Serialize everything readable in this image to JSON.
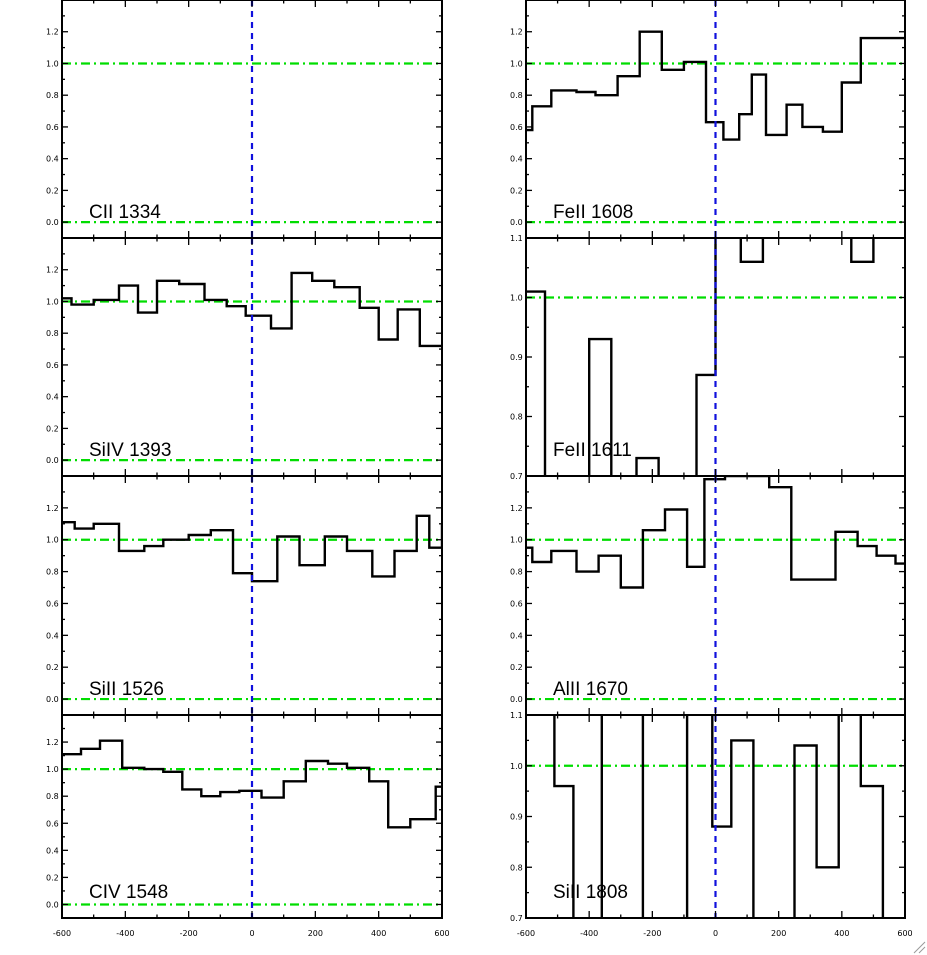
{
  "figure": {
    "x_ticks": [
      -600,
      -400,
      -200,
      0,
      200,
      400,
      600
    ],
    "colors": {
      "spectrum": "#000000",
      "continuum": "#00dd00",
      "systemic": "#1010dd"
    }
  },
  "chart_data": [
    {
      "type": "line",
      "step": true,
      "label": "CII 1334",
      "xlim": [
        -600,
        600
      ],
      "ylim": [
        -0.1,
        1.4
      ],
      "yticks": [
        0.0,
        0.2,
        0.4,
        0.6,
        0.8,
        1.0,
        1.2
      ],
      "ytick_labels": [
        "0.0",
        "0.2",
        "0.4",
        "0.6",
        "0.8",
        "1.0",
        "1.2"
      ],
      "continuum": 1.0,
      "zero_level": 0.0,
      "systemic_velocity": 0,
      "x": [],
      "y": []
    },
    {
      "type": "line",
      "step": true,
      "label": "FeII 1608",
      "xlim": [
        -600,
        600
      ],
      "ylim": [
        -0.1,
        1.4
      ],
      "yticks": [
        0.0,
        0.2,
        0.4,
        0.6,
        0.8,
        1.0,
        1.2
      ],
      "ytick_labels": [
        "0.0",
        "0.2",
        "0.4",
        "0.6",
        "0.8",
        "1.0",
        "1.2"
      ],
      "continuum": 1.0,
      "zero_level": 0.0,
      "systemic_velocity": 0,
      "x": [
        -600,
        -580,
        -520,
        -440,
        -380,
        -310,
        -240,
        -170,
        -100,
        -30,
        25,
        75,
        115,
        160,
        225,
        275,
        340,
        400,
        460,
        520,
        560,
        600
      ],
      "y": [
        0.58,
        0.73,
        0.83,
        0.82,
        0.8,
        0.92,
        1.2,
        0.96,
        1.01,
        0.63,
        0.52,
        0.68,
        0.93,
        0.55,
        0.74,
        0.6,
        0.57,
        0.88,
        1.16,
        1.16,
        1.16,
        1.16
      ]
    },
    {
      "type": "line",
      "step": true,
      "label": "SiIV 1393",
      "xlim": [
        -600,
        600
      ],
      "ylim": [
        -0.1,
        1.4
      ],
      "yticks": [
        0.0,
        0.2,
        0.4,
        0.6,
        0.8,
        1.0,
        1.2
      ],
      "ytick_labels": [
        "0.0",
        "0.2",
        "0.4",
        "0.6",
        "0.8",
        "1.0",
        "1.2"
      ],
      "continuum": 1.0,
      "zero_level": 0.0,
      "systemic_velocity": 0,
      "x": [
        -600,
        -570,
        -500,
        -420,
        -360,
        -300,
        -230,
        -150,
        -80,
        -20,
        60,
        125,
        190,
        260,
        340,
        400,
        460,
        530,
        570,
        600
      ],
      "y": [
        1.02,
        0.98,
        1.01,
        1.1,
        0.93,
        1.13,
        1.11,
        1.01,
        0.97,
        0.91,
        0.83,
        1.18,
        1.13,
        1.09,
        0.96,
        0.76,
        0.95,
        0.72,
        0.72,
        0.72
      ]
    },
    {
      "type": "line",
      "step": true,
      "label": "FeII 1611",
      "xlim": [
        -600,
        600
      ],
      "ylim": [
        0.7,
        1.1
      ],
      "yticks": [
        0.7,
        0.8,
        0.9,
        1.0,
        1.1
      ],
      "ytick_labels": [
        "0.7",
        "0.8",
        "0.9",
        "1.0",
        "1.1"
      ],
      "continuum": 1.0,
      "zero_level": null,
      "systemic_velocity": 0,
      "x": [
        -600,
        -570,
        -540,
        -400,
        -330,
        -250,
        -180,
        -60,
        0,
        80,
        150,
        430,
        500,
        600
      ],
      "y": [
        1.01,
        1.01,
        0.69,
        0.93,
        0.69,
        0.73,
        0.69,
        0.87,
        1.12,
        1.06,
        1.12,
        1.06,
        1.12,
        1.12
      ]
    },
    {
      "type": "line",
      "step": true,
      "label": "SiII 1526",
      "xlim": [
        -600,
        600
      ],
      "ylim": [
        -0.1,
        1.4
      ],
      "yticks": [
        0.0,
        0.2,
        0.4,
        0.6,
        0.8,
        1.0,
        1.2
      ],
      "ytick_labels": [
        "0.0",
        "0.2",
        "0.4",
        "0.6",
        "0.8",
        "1.0",
        "1.2"
      ],
      "continuum": 1.0,
      "zero_level": 0.0,
      "systemic_velocity": 0,
      "x": [
        -600,
        -560,
        -500,
        -420,
        -340,
        -280,
        -200,
        -130,
        -60,
        0,
        80,
        150,
        230,
        300,
        380,
        450,
        520,
        560,
        600
      ],
      "y": [
        1.11,
        1.07,
        1.1,
        0.93,
        0.96,
        1.0,
        1.03,
        1.06,
        0.79,
        0.74,
        1.02,
        0.84,
        1.02,
        0.93,
        0.77,
        0.93,
        1.15,
        0.95,
        1.1
      ]
    },
    {
      "type": "line",
      "step": true,
      "label": "AlII 1670",
      "xlim": [
        -600,
        600
      ],
      "ylim": [
        -0.1,
        1.4
      ],
      "yticks": [
        0.0,
        0.2,
        0.4,
        0.6,
        0.8,
        1.0,
        1.2
      ],
      "ytick_labels": [
        "0.0",
        "0.2",
        "0.4",
        "0.6",
        "0.8",
        "1.0",
        "1.2"
      ],
      "continuum": 1.0,
      "zero_level": 0.0,
      "systemic_velocity": 0,
      "x": [
        -600,
        -580,
        -520,
        -440,
        -370,
        -300,
        -230,
        -160,
        -90,
        -35,
        30,
        170,
        240,
        300,
        380,
        450,
        510,
        570,
        600
      ],
      "y": [
        0.95,
        0.86,
        0.93,
        0.8,
        0.9,
        0.7,
        1.06,
        1.19,
        0.83,
        1.38,
        1.4,
        1.33,
        0.75,
        0.75,
        1.05,
        0.96,
        0.9,
        0.85,
        0.85
      ]
    },
    {
      "type": "line",
      "step": true,
      "label": "CIV 1548",
      "xlim": [
        -600,
        600
      ],
      "ylim": [
        -0.1,
        1.4
      ],
      "yticks": [
        0.0,
        0.2,
        0.4,
        0.6,
        0.8,
        1.0,
        1.2
      ],
      "ytick_labels": [
        "0.0",
        "0.2",
        "0.4",
        "0.6",
        "0.8",
        "1.0",
        "1.2"
      ],
      "continuum": 1.0,
      "zero_level": 0.0,
      "systemic_velocity": 0,
      "x": [
        -600,
        -540,
        -480,
        -410,
        -340,
        -280,
        -220,
        -160,
        -100,
        -40,
        30,
        100,
        170,
        240,
        300,
        370,
        430,
        500,
        580,
        600
      ],
      "y": [
        1.11,
        1.15,
        1.21,
        1.01,
        1.0,
        0.98,
        0.85,
        0.8,
        0.83,
        0.84,
        0.79,
        0.91,
        1.06,
        1.04,
        1.01,
        0.91,
        0.57,
        0.63,
        0.87,
        0.87
      ]
    },
    {
      "type": "line",
      "step": true,
      "label": "SiII 1808",
      "xlim": [
        -600,
        600
      ],
      "ylim": [
        0.7,
        1.1
      ],
      "yticks": [
        0.7,
        0.8,
        0.9,
        1.0,
        1.1
      ],
      "ytick_labels": [
        "0.7",
        "0.8",
        "0.9",
        "1.0",
        "1.1"
      ],
      "continuum": 1.0,
      "zero_level": null,
      "systemic_velocity": 0,
      "x": [
        -600,
        -570,
        -510,
        -450,
        -360,
        -230,
        -90,
        -10,
        50,
        120,
        250,
        320,
        390,
        460,
        530,
        600
      ],
      "y": [
        1.12,
        1.12,
        0.96,
        0.69,
        1.12,
        0.69,
        1.12,
        0.88,
        1.05,
        0.69,
        1.04,
        0.8,
        1.12,
        0.96,
        0.69,
        0.69
      ]
    }
  ]
}
